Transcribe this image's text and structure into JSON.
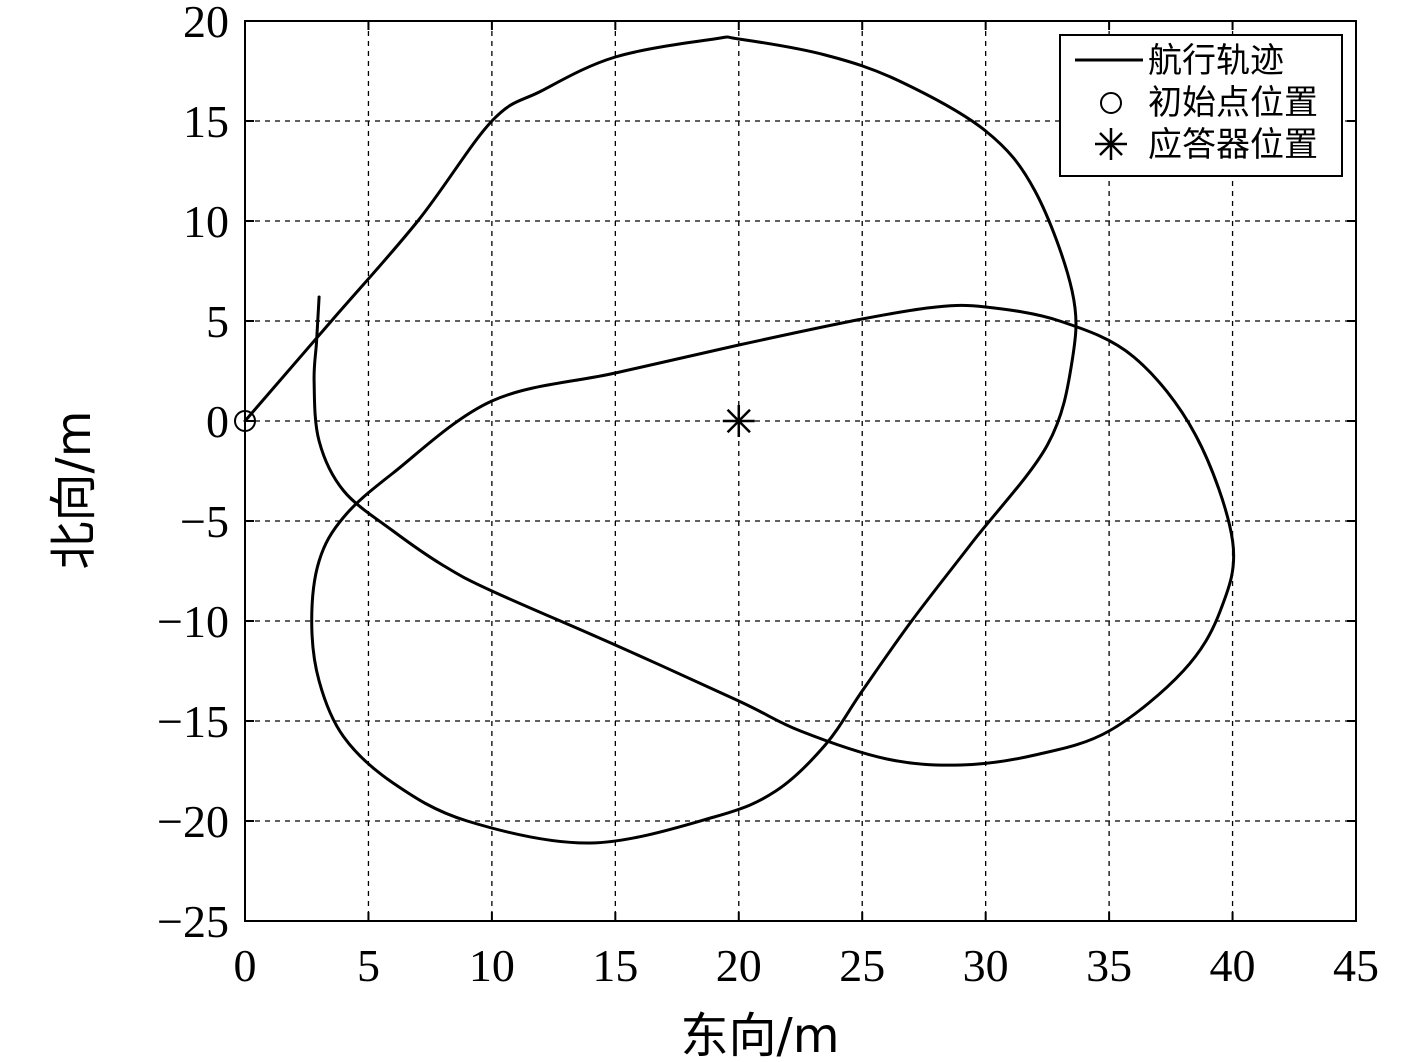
{
  "chart_data": {
    "type": "line",
    "title": "",
    "xlabel": "东向/m",
    "ylabel": "北向/m",
    "xlim": [
      0,
      45
    ],
    "ylim": [
      -25,
      20
    ],
    "xticks": [
      0,
      5,
      10,
      15,
      20,
      25,
      30,
      35,
      40,
      45
    ],
    "yticks": [
      20,
      15,
      10,
      5,
      0,
      -5,
      -10,
      -15,
      -20,
      -25
    ],
    "x_tick_labels": [
      "0",
      "5",
      "10",
      "15",
      "20",
      "25",
      "30",
      "35",
      "40",
      "45"
    ],
    "y_tick_labels": [
      "20",
      "15",
      "10",
      "5",
      "0",
      "−5",
      "−10",
      "−15",
      "−20",
      "−25"
    ],
    "grid": true,
    "legend_position": "top-right",
    "legend": [
      {
        "label": "航行轨迹",
        "marker": "line"
      },
      {
        "label": "初始点位置",
        "marker": "circle"
      },
      {
        "label": "应答器位置",
        "marker": "asterisk"
      }
    ],
    "series": [
      {
        "name": "航行轨迹",
        "style": "solid-line",
        "points": [
          [
            0,
            0
          ],
          [
            3.5,
            5
          ],
          [
            7,
            10
          ],
          [
            10,
            15
          ],
          [
            12,
            16.5
          ],
          [
            15,
            18.2
          ],
          [
            19,
            19.1
          ],
          [
            20,
            19.1
          ],
          [
            23.5,
            18.3
          ],
          [
            26.5,
            17
          ],
          [
            30,
            14.5
          ],
          [
            32,
            11.5
          ],
          [
            33.5,
            6.5
          ],
          [
            33.5,
            3
          ],
          [
            32.5,
            -1.2
          ],
          [
            29.5,
            -6
          ],
          [
            27,
            -10
          ],
          [
            25,
            -13.5
          ],
          [
            23.5,
            -16.2
          ],
          [
            21.5,
            -18.5
          ],
          [
            19,
            -19.8
          ],
          [
            14,
            -21.1
          ],
          [
            9,
            -20
          ],
          [
            6,
            -18.1
          ],
          [
            4,
            -15.8
          ],
          [
            3,
            -13
          ],
          [
            2.7,
            -10
          ],
          [
            3,
            -7
          ],
          [
            4,
            -4.8
          ],
          [
            6,
            -2.6
          ],
          [
            10,
            1
          ],
          [
            15,
            2.4
          ],
          [
            20,
            3.8
          ],
          [
            25,
            5.1
          ],
          [
            28,
            5.7
          ],
          [
            30,
            5.7
          ],
          [
            33,
            5
          ],
          [
            36,
            3.2
          ],
          [
            38.5,
            -0.7
          ],
          [
            40,
            -6
          ],
          [
            39.5,
            -9.5
          ],
          [
            38,
            -12.5
          ],
          [
            35,
            -15.5
          ],
          [
            32,
            -16.7
          ],
          [
            29,
            -17.2
          ],
          [
            26,
            -16.9
          ],
          [
            22.5,
            -15.5
          ],
          [
            20,
            -14
          ],
          [
            15,
            -11.2
          ],
          [
            10,
            -8.5
          ],
          [
            8,
            -7.2
          ],
          [
            6,
            -5.5
          ],
          [
            4,
            -3.5
          ],
          [
            3,
            -1
          ],
          [
            2.8,
            2
          ],
          [
            2.9,
            4
          ],
          [
            3,
            6.2
          ]
        ]
      },
      {
        "name": "初始点位置",
        "style": "circle-marker",
        "points": [
          [
            0,
            0
          ]
        ]
      },
      {
        "name": "应答器位置",
        "style": "asterisk-marker",
        "points": [
          [
            20,
            0
          ]
        ]
      }
    ]
  }
}
